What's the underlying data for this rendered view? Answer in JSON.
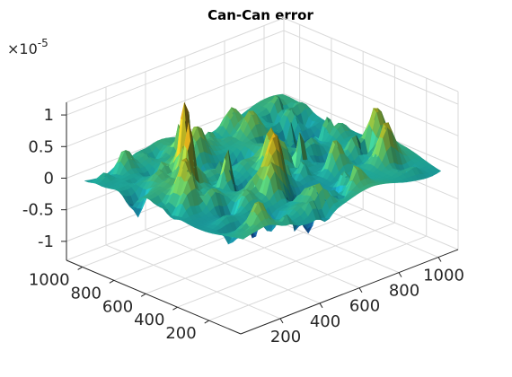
{
  "chart_data": {
    "type": "surface",
    "title": "Can-Can error",
    "z_exponent_label": "×10",
    "z_exponent_power": "-5",
    "xlim": [
      0,
      1100
    ],
    "ylim": [
      0,
      1100
    ],
    "zlim": [
      -1.3e-05,
      1.2e-05
    ],
    "x_ticks": [
      200,
      400,
      600,
      800,
      1000
    ],
    "x_tick_labels": [
      "200",
      "400",
      "600",
      "800",
      "1000"
    ],
    "y_ticks": [
      200,
      400,
      600,
      800,
      1000
    ],
    "y_tick_labels": [
      "200",
      "400",
      "600",
      "800",
      "1000"
    ],
    "z_ticks": [
      -1e-05,
      -5e-06,
      0,
      5e-06,
      1e-05
    ],
    "z_tick_labels": [
      "-1",
      "-0.5",
      "0",
      "0.5",
      "1"
    ],
    "grid": true,
    "colormap": "parula",
    "colors": {
      "low": "#0a3a6b",
      "mid": "#1fb6a8",
      "high": "#e8a818"
    }
  }
}
